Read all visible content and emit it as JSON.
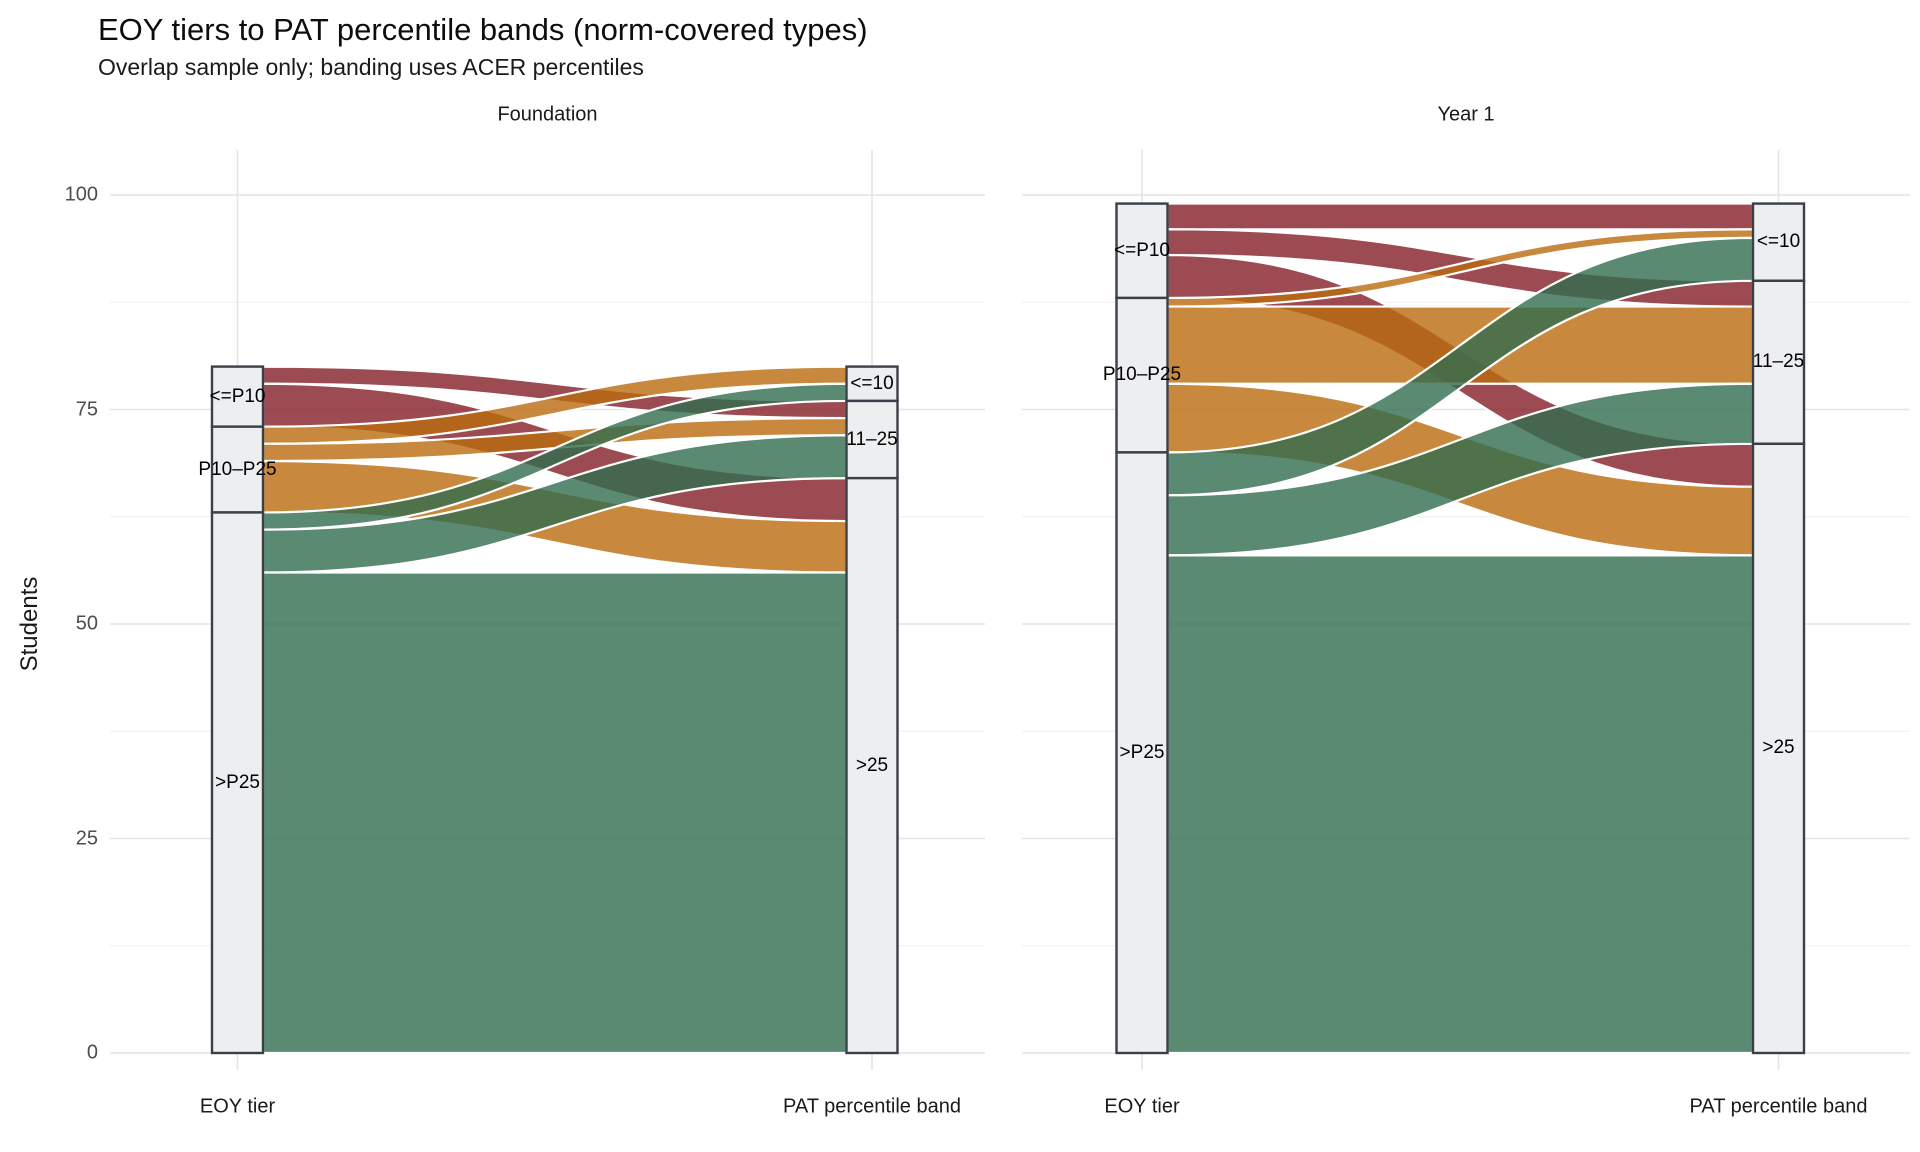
{
  "title": "EOY tiers to PAT percentile bands (norm-covered types)",
  "subtitle": "Overlap sample only; banding uses ACER percentiles",
  "colors": {
    "tier_le_p10": "#9d4b52",
    "tier_p10_p25": "#c8893f",
    "tier_gt_p25": "#5a8a72",
    "stratum_fill": "#edeef0",
    "stratum_stroke": "#3a4048",
    "grid_major": "#e4e4e4",
    "grid_minor": "#f1f1f1",
    "flow_border": "#ffffff"
  },
  "chart_data": {
    "type": "alluvial",
    "title": "EOY tiers to PAT percentile bands (norm-covered types)",
    "subtitle": "Overlap sample only; banding uses ACER percentiles",
    "ylabel": "Students",
    "ylim": [
      0,
      100
    ],
    "y_ticks": [
      0,
      25,
      50,
      75,
      100
    ],
    "y_minor_ticks": [
      12.5,
      37.5,
      62.5,
      87.5
    ],
    "grid": true,
    "axis_labels": [
      "EOY tier",
      "PAT percentile band"
    ],
    "legend": "none",
    "panels": [
      {
        "title": "Foundation",
        "total": 80,
        "eoy_tiers": [
          {
            "label": "<=P10",
            "value": 7,
            "color_key": "tier_le_p10"
          },
          {
            "label": "P10–P25",
            "value": 10,
            "color_key": "tier_p10_p25"
          },
          {
            "label": ">P25",
            "value": 63,
            "color_key": "tier_gt_p25"
          }
        ],
        "pat_bands": [
          {
            "label": "<=10",
            "value": 4
          },
          {
            "label": "11–25",
            "value": 9
          },
          {
            "label": ">25",
            "value": 67
          }
        ],
        "flows": [
          {
            "from": "<=P10",
            "to": "11–25",
            "value": 2
          },
          {
            "from": "<=P10",
            "to": ">25",
            "value": 5
          },
          {
            "from": "P10–P25",
            "to": "<=10",
            "value": 2
          },
          {
            "from": "P10–P25",
            "to": "11–25",
            "value": 2
          },
          {
            "from": "P10–P25",
            "to": ">25",
            "value": 6
          },
          {
            "from": ">P25",
            "to": "<=10",
            "value": 2
          },
          {
            "from": ">P25",
            "to": "11–25",
            "value": 5
          },
          {
            "from": ">P25",
            "to": ">25",
            "value": 56
          }
        ]
      },
      {
        "title": "Year 1",
        "total": 99,
        "eoy_tiers": [
          {
            "label": "<=P10",
            "value": 11,
            "color_key": "tier_le_p10"
          },
          {
            "label": "P10–P25",
            "value": 18,
            "color_key": "tier_p10_p25"
          },
          {
            "label": ">P25",
            "value": 70,
            "color_key": "tier_gt_p25"
          }
        ],
        "pat_bands": [
          {
            "label": "<=10",
            "value": 9
          },
          {
            "label": "11–25",
            "value": 19
          },
          {
            "label": ">25",
            "value": 71
          }
        ],
        "flows": [
          {
            "from": "<=P10",
            "to": "<=10",
            "value": 3
          },
          {
            "from": "<=P10",
            "to": "11–25",
            "value": 3
          },
          {
            "from": "<=P10",
            "to": ">25",
            "value": 5
          },
          {
            "from": "P10–P25",
            "to": "<=10",
            "value": 1
          },
          {
            "from": "P10–P25",
            "to": "11–25",
            "value": 9
          },
          {
            "from": "P10–P25",
            "to": ">25",
            "value": 8
          },
          {
            "from": ">P25",
            "to": "<=10",
            "value": 5
          },
          {
            "from": ">P25",
            "to": "11–25",
            "value": 7
          },
          {
            "from": ">P25",
            "to": ">25",
            "value": 58
          }
        ]
      }
    ]
  }
}
